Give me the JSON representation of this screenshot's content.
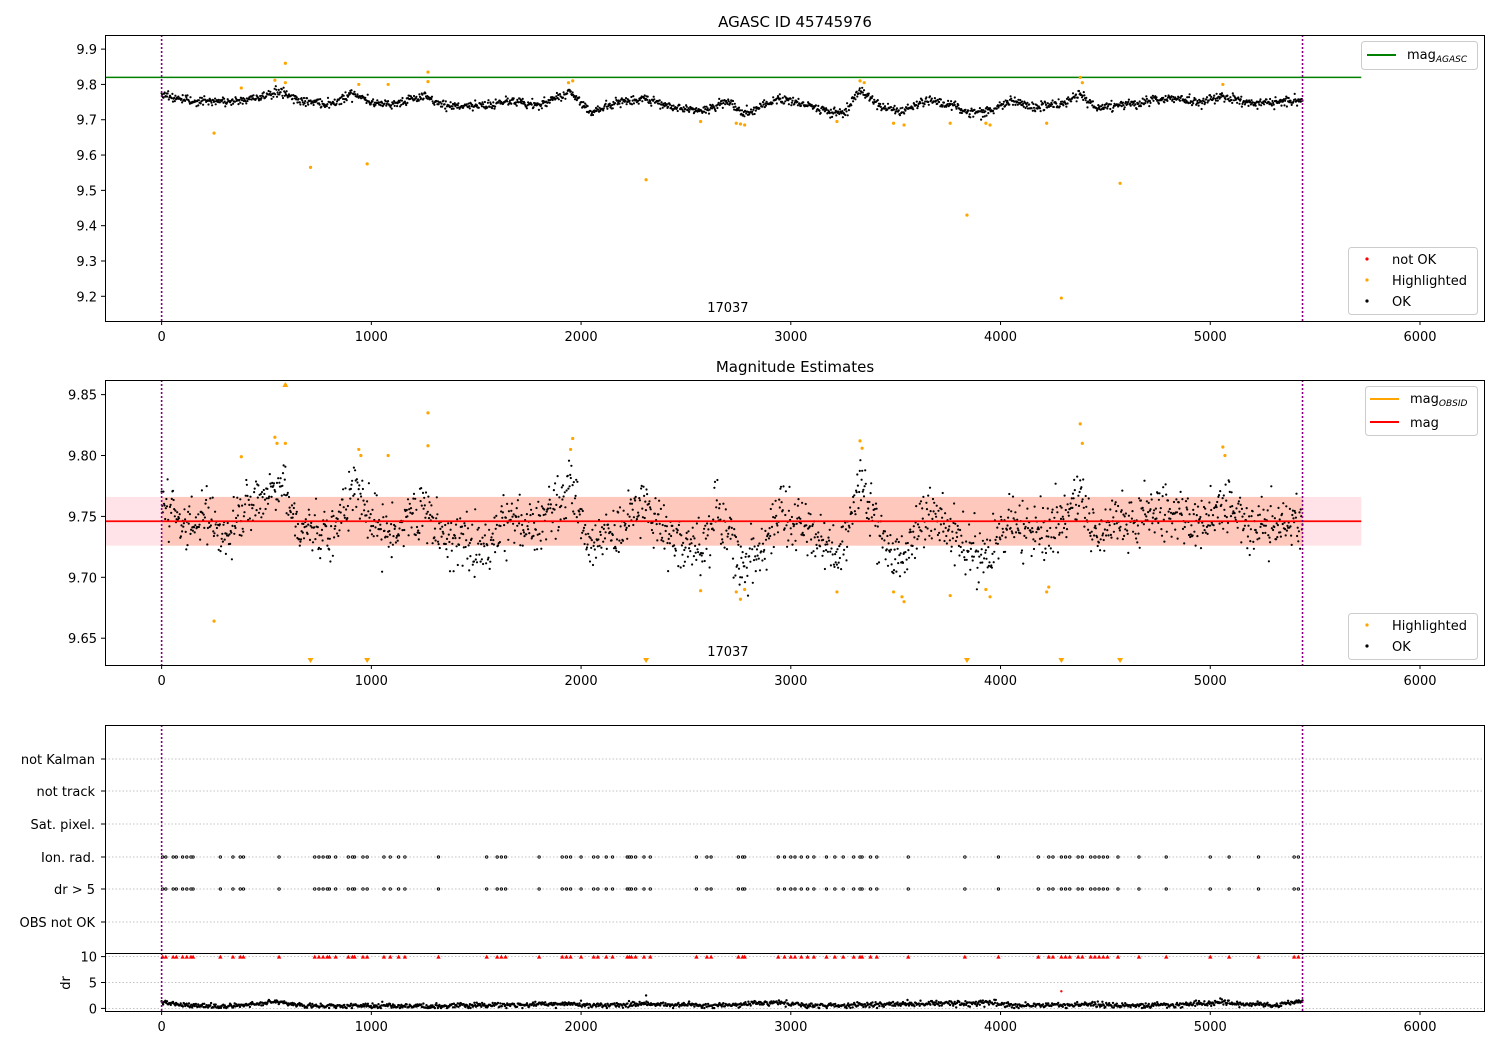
{
  "chart_data": [
    {
      "type": "scatter",
      "title": "AGASC ID 45745976",
      "xlim": [
        -270,
        6310
      ],
      "ylim": [
        9.13,
        9.94
      ],
      "x_ticks": [
        0,
        1000,
        2000,
        3000,
        4000,
        5000,
        6000
      ],
      "y_ticks": [
        9.2,
        9.3,
        9.4,
        9.5,
        9.6,
        9.7,
        9.8,
        9.9
      ],
      "obsid_label": "17037",
      "obsid_label_x": 2700,
      "vlines_x": [
        0,
        5440
      ],
      "hline": {
        "name_main": "mag",
        "name_sub": "AGASC",
        "y": 9.82,
        "x_range": [
          -270,
          5720
        ],
        "color": "#008000"
      },
      "legend_lines": [
        {
          "main": "mag",
          "sub": "AGASC",
          "color": "#008000"
        }
      ],
      "legend_points": [
        {
          "label": "not OK",
          "color": "#ff0000"
        },
        {
          "label": "Highlighted",
          "color": "#ffa500"
        },
        {
          "label": "OK",
          "color": "#000000"
        }
      ],
      "ok_trend": [
        [
          0,
          9.775
        ],
        [
          100,
          9.755
        ],
        [
          250,
          9.75
        ],
        [
          400,
          9.755
        ],
        [
          500,
          9.77
        ],
        [
          580,
          9.78
        ],
        [
          650,
          9.755
        ],
        [
          800,
          9.745
        ],
        [
          920,
          9.775
        ],
        [
          1000,
          9.75
        ],
        [
          1100,
          9.745
        ],
        [
          1250,
          9.765
        ],
        [
          1350,
          9.74
        ],
        [
          1550,
          9.74
        ],
        [
          1650,
          9.755
        ],
        [
          1800,
          9.74
        ],
        [
          1950,
          9.78
        ],
        [
          2050,
          9.72
        ],
        [
          2150,
          9.745
        ],
        [
          2300,
          9.76
        ],
        [
          2450,
          9.735
        ],
        [
          2600,
          9.725
        ],
        [
          2700,
          9.755
        ],
        [
          2770,
          9.715
        ],
        [
          2850,
          9.735
        ],
        [
          2950,
          9.76
        ],
        [
          3050,
          9.745
        ],
        [
          3150,
          9.73
        ],
        [
          3250,
          9.715
        ],
        [
          3330,
          9.785
        ],
        [
          3420,
          9.74
        ],
        [
          3520,
          9.72
        ],
        [
          3650,
          9.755
        ],
        [
          3750,
          9.745
        ],
        [
          3850,
          9.72
        ],
        [
          3950,
          9.725
        ],
        [
          4050,
          9.755
        ],
        [
          4150,
          9.735
        ],
        [
          4300,
          9.745
        ],
        [
          4380,
          9.775
        ],
        [
          4450,
          9.735
        ],
        [
          4600,
          9.745
        ],
        [
          4800,
          9.76
        ],
        [
          4950,
          9.75
        ],
        [
          5050,
          9.765
        ],
        [
          5200,
          9.745
        ],
        [
          5440,
          9.755
        ]
      ],
      "ok_scatter": 0.012,
      "ok_points": 1900,
      "highlighted": [
        [
          250,
          9.662
        ],
        [
          380,
          9.79
        ],
        [
          540,
          9.812
        ],
        [
          590,
          9.86
        ],
        [
          590,
          9.805
        ],
        [
          710,
          9.565
        ],
        [
          940,
          9.8
        ],
        [
          980,
          9.575
        ],
        [
          1080,
          9.8
        ],
        [
          1270,
          9.835
        ],
        [
          1270,
          9.808
        ],
        [
          1940,
          9.805
        ],
        [
          1960,
          9.81
        ],
        [
          2310,
          9.53
        ],
        [
          2570,
          9.695
        ],
        [
          2740,
          9.69
        ],
        [
          2760,
          9.688
        ],
        [
          2780,
          9.685
        ],
        [
          3220,
          9.695
        ],
        [
          3330,
          9.81
        ],
        [
          3350,
          9.805
        ],
        [
          3490,
          9.69
        ],
        [
          3540,
          9.685
        ],
        [
          3760,
          9.69
        ],
        [
          3840,
          9.43
        ],
        [
          3930,
          9.69
        ],
        [
          3950,
          9.685
        ],
        [
          4220,
          9.69
        ],
        [
          4290,
          9.195
        ],
        [
          4380,
          9.82
        ],
        [
          4390,
          9.805
        ],
        [
          4570,
          9.52
        ],
        [
          5060,
          9.8
        ]
      ]
    },
    {
      "type": "scatter",
      "title": "Magnitude Estimates",
      "xlim": [
        -270,
        6310
      ],
      "ylim": [
        9.628,
        9.862
      ],
      "x_ticks": [
        0,
        1000,
        2000,
        3000,
        4000,
        5000,
        6000
      ],
      "y_ticks": [
        9.65,
        9.7,
        9.75,
        9.8,
        9.85
      ],
      "y_tick_labels": [
        "9.65",
        "9.70",
        "9.75",
        "9.80",
        "9.85"
      ],
      "obsid_label": "17037",
      "obsid_label_x": 2700,
      "vlines_x": [
        0,
        5440
      ],
      "mean_mag": {
        "y": 9.746,
        "x_range": [
          -270,
          5720
        ],
        "color": "#ff0000"
      },
      "band_wide": {
        "y": [
          9.726,
          9.766
        ],
        "x_range": [
          -270,
          5720
        ],
        "color": "#ffc0cb"
      },
      "band_obsid": {
        "y": [
          9.726,
          9.766
        ],
        "x_range": [
          0,
          5440
        ],
        "color": "#ffa07a"
      },
      "legend_lines": [
        {
          "main": "mag",
          "sub": "OBSID",
          "color": "#ffa500"
        },
        {
          "main": "mag",
          "sub": "",
          "color": "#ff0000"
        }
      ],
      "legend_points": [
        {
          "label": "Highlighted",
          "color": "#ffa500"
        },
        {
          "label": "OK",
          "color": "#000000"
        }
      ],
      "ok_trend": [
        [
          0,
          9.765
        ],
        [
          100,
          9.745
        ],
        [
          200,
          9.75
        ],
        [
          300,
          9.735
        ],
        [
          400,
          9.755
        ],
        [
          500,
          9.765
        ],
        [
          580,
          9.78
        ],
        [
          650,
          9.74
        ],
        [
          800,
          9.735
        ],
        [
          920,
          9.775
        ],
        [
          1000,
          9.745
        ],
        [
          1100,
          9.74
        ],
        [
          1250,
          9.76
        ],
        [
          1350,
          9.73
        ],
        [
          1450,
          9.73
        ],
        [
          1550,
          9.725
        ],
        [
          1650,
          9.75
        ],
        [
          1800,
          9.74
        ],
        [
          1950,
          9.775
        ],
        [
          2050,
          9.72
        ],
        [
          2150,
          9.74
        ],
        [
          2300,
          9.76
        ],
        [
          2450,
          9.73
        ],
        [
          2550,
          9.72
        ],
        [
          2650,
          9.755
        ],
        [
          2770,
          9.705
        ],
        [
          2850,
          9.72
        ],
        [
          2950,
          9.755
        ],
        [
          3050,
          9.74
        ],
        [
          3150,
          9.73
        ],
        [
          3230,
          9.715
        ],
        [
          3330,
          9.78
        ],
        [
          3420,
          9.735
        ],
        [
          3520,
          9.715
        ],
        [
          3650,
          9.75
        ],
        [
          3750,
          9.74
        ],
        [
          3850,
          9.72
        ],
        [
          3950,
          9.72
        ],
        [
          4050,
          9.75
        ],
        [
          4150,
          9.735
        ],
        [
          4300,
          9.745
        ],
        [
          4380,
          9.77
        ],
        [
          4450,
          9.735
        ],
        [
          4600,
          9.745
        ],
        [
          4800,
          9.755
        ],
        [
          4950,
          9.745
        ],
        [
          5050,
          9.76
        ],
        [
          5200,
          9.74
        ],
        [
          5440,
          9.75
        ]
      ],
      "ok_scatter": 0.011,
      "ok_points": 1900,
      "highlighted": [
        [
          250,
          9.664
        ],
        [
          380,
          9.799
        ],
        [
          540,
          9.815
        ],
        [
          550,
          9.81
        ],
        [
          590,
          9.81
        ],
        [
          590,
          9.858
        ],
        [
          940,
          9.805
        ],
        [
          950,
          9.8
        ],
        [
          1080,
          9.8
        ],
        [
          1270,
          9.835
        ],
        [
          1270,
          9.808
        ],
        [
          1950,
          9.805
        ],
        [
          1960,
          9.814
        ],
        [
          2570,
          9.689
        ],
        [
          2740,
          9.688
        ],
        [
          2760,
          9.682
        ],
        [
          2780,
          9.69
        ],
        [
          3220,
          9.688
        ],
        [
          3330,
          9.812
        ],
        [
          3340,
          9.806
        ],
        [
          3490,
          9.688
        ],
        [
          3530,
          9.684
        ],
        [
          3540,
          9.68
        ],
        [
          3760,
          9.685
        ],
        [
          3930,
          9.69
        ],
        [
          3950,
          9.684
        ],
        [
          4220,
          9.688
        ],
        [
          4230,
          9.692
        ],
        [
          4380,
          9.826
        ],
        [
          4390,
          9.81
        ],
        [
          5060,
          9.807
        ],
        [
          5070,
          9.8
        ]
      ],
      "below_range_markers_x": [
        710,
        980,
        2310,
        3840,
        4290,
        4570
      ],
      "above_range_markers_x": [
        590
      ]
    },
    {
      "type": "scatter",
      "title": "",
      "xlim": [
        -270,
        6310
      ],
      "x_ticks": [
        0,
        1000,
        2000,
        3000,
        4000,
        5000,
        6000
      ],
      "vlines_x": [
        0,
        5440
      ],
      "flag_rows": [
        "not Kalman",
        "not track",
        "Sat. pixel.",
        "Ion. rad.",
        "dr > 5",
        "OBS not OK"
      ],
      "flag_events_x": [
        5,
        20,
        55,
        70,
        100,
        120,
        140,
        150,
        280,
        340,
        375,
        390,
        560,
        730,
        750,
        770,
        790,
        800,
        830,
        890,
        910,
        920,
        960,
        980,
        1060,
        1090,
        1130,
        1160,
        1320,
        1550,
        1600,
        1620,
        1640,
        1800,
        1910,
        1930,
        1950,
        2000,
        2060,
        2080,
        2120,
        2150,
        2220,
        2230,
        2240,
        2260,
        2300,
        2330,
        2550,
        2600,
        2620,
        2750,
        2770,
        2780,
        2940,
        2970,
        3000,
        3020,
        3050,
        3080,
        3110,
        3170,
        3210,
        3250,
        3300,
        3330,
        3340,
        3380,
        3410,
        3560,
        3830,
        3990,
        4180,
        4230,
        4250,
        4290,
        4310,
        4330,
        4370,
        4390,
        4430,
        4450,
        4470,
        4490,
        4510,
        4560,
        4660,
        4790,
        5000,
        5090,
        5230,
        5400,
        5420
      ],
      "dr": {
        "ylabel": "dr",
        "ylim": [
          -0.5,
          10.5
        ],
        "y_ticks": [
          0,
          5,
          10
        ],
        "clip_at": 10,
        "baseline_trend": [
          [
            0,
            1.2
          ],
          [
            100,
            0.6
          ],
          [
            300,
            0.4
          ],
          [
            550,
            1.2
          ],
          [
            700,
            0.5
          ],
          [
            1000,
            0.5
          ],
          [
            1300,
            0.4
          ],
          [
            1500,
            0.6
          ],
          [
            1950,
            0.9
          ],
          [
            2050,
            0.5
          ],
          [
            2300,
            0.9
          ],
          [
            2600,
            0.5
          ],
          [
            2950,
            1.1
          ],
          [
            3100,
            0.5
          ],
          [
            3300,
            0.6
          ],
          [
            3700,
            1.0
          ],
          [
            3950,
            1.1
          ],
          [
            4100,
            0.5
          ],
          [
            4400,
            0.8
          ],
          [
            4700,
            0.5
          ],
          [
            5050,
            1.1
          ],
          [
            5300,
            0.6
          ],
          [
            5440,
            1.4
          ]
        ],
        "outliers": [
          [
            4290,
            3.3
          ],
          [
            2310,
            2.5
          ]
        ]
      }
    }
  ]
}
